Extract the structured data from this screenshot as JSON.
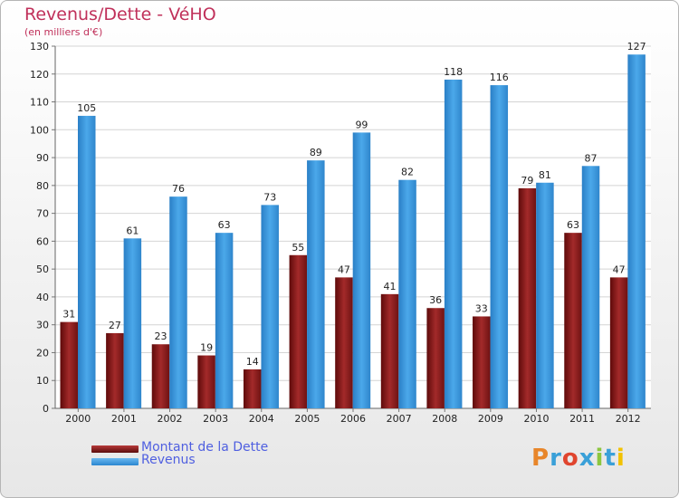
{
  "chart_data": {
    "type": "bar",
    "title": "Revenus/Dette - VéHO",
    "subtitle": "(en milliers d'€)",
    "categories": [
      "2000",
      "2001",
      "2002",
      "2003",
      "2004",
      "2005",
      "2006",
      "2007",
      "2008",
      "2009",
      "2010",
      "2011",
      "2012"
    ],
    "series": [
      {
        "name": "Montant de la Dette",
        "color": "#8b1a1a",
        "values": [
          31,
          27,
          23,
          19,
          14,
          55,
          47,
          41,
          36,
          33,
          79,
          63,
          47
        ]
      },
      {
        "name": "Revenus",
        "color": "#3d9be0",
        "values": [
          105,
          61,
          76,
          63,
          73,
          89,
          99,
          82,
          118,
          116,
          81,
          87,
          127
        ]
      }
    ],
    "ylim": [
      0,
      130
    ],
    "yticks": [
      0,
      10,
      20,
      30,
      40,
      50,
      60,
      70,
      80,
      90,
      100,
      110,
      120,
      130
    ],
    "grid": true,
    "legend_position": "bottom-left"
  },
  "logo": {
    "text": "Proxiti",
    "colors": [
      "#e8862a",
      "#3aa0d8",
      "#e0452e",
      "#3aa0d8",
      "#8cc63f",
      "#3aa0d8",
      "#f2c200"
    ]
  }
}
